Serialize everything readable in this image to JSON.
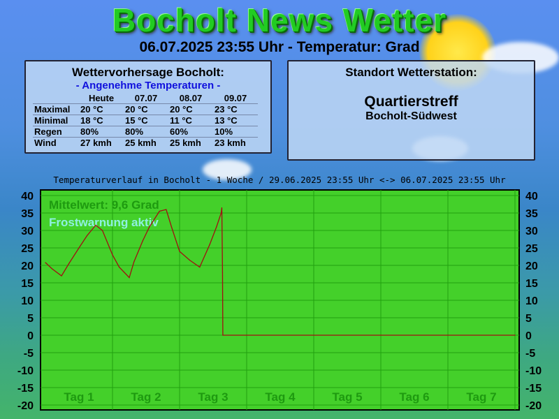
{
  "header": {
    "title": "Bocholt News Wetter",
    "subtitle": "06.07.2025 23:55 Uhr - Temperatur:  Grad"
  },
  "forecast": {
    "title": "Wettervorhersage Bocholt:",
    "mood": "- Angenehme Temperaturen -",
    "columns": [
      "",
      "Heute",
      "07.07",
      "08.07",
      "09.07"
    ],
    "rows": [
      [
        "Maximal",
        "20 °C",
        "20 °C",
        "20 °C",
        "23 °C"
      ],
      [
        "Minimal",
        "18 °C",
        "15 °C",
        "11 °C",
        "13 °C"
      ],
      [
        "Regen",
        "80%",
        "80%",
        "60%",
        "10%"
      ],
      [
        "Wind",
        "27 kmh",
        "25 kmh",
        "25 kmh",
        "23 kmh"
      ]
    ]
  },
  "station": {
    "title": "Standort Wetterstation:",
    "name": "Quartierstreff",
    "district": "Bocholt-Südwest"
  },
  "chart_data": {
    "type": "line",
    "title": "Temperaturverlauf in Bocholt - 1 Woche / 29.06.2025 23:55 Uhr <-> 06.07.2025 23:55 Uhr",
    "categories": [
      "Tag 1",
      "Tag 2",
      "Tag 3",
      "Tag 4",
      "Tag 5",
      "Tag 6",
      "Tag 7"
    ],
    "ylim": [
      -20,
      40
    ],
    "yticks": [
      40,
      35,
      30,
      25,
      20,
      15,
      10,
      5,
      0,
      -5,
      -10,
      -15,
      -20
    ],
    "grid": true,
    "annotations": [
      "Mittelwert: 9,6 Grad",
      "Frostwarnung aktiv"
    ],
    "colors": {
      "plot_bg": "#44d02a",
      "grid": "#22a010",
      "line": "#a01010",
      "mean_text": "#1e9a10",
      "frost_text": "#8ff0e0"
    },
    "x_unit": "days",
    "x": [
      0,
      0.1,
      0.24,
      0.35,
      0.5,
      0.62,
      0.75,
      0.85,
      1.0,
      1.1,
      1.25,
      1.32,
      1.45,
      1.55,
      1.7,
      1.8,
      1.88,
      2.0,
      2.15,
      2.3,
      2.45,
      2.55,
      2.62,
      2.63,
      2.64,
      2.645,
      7
    ],
    "values": [
      20.8,
      19,
      17,
      20.5,
      25,
      28.5,
      31.5,
      30,
      23,
      19.5,
      16.5,
      21,
      27,
      31,
      35.5,
      36,
      31,
      24,
      21.5,
      19.5,
      26,
      31,
      35,
      36.5,
      18,
      0,
      0
    ]
  }
}
